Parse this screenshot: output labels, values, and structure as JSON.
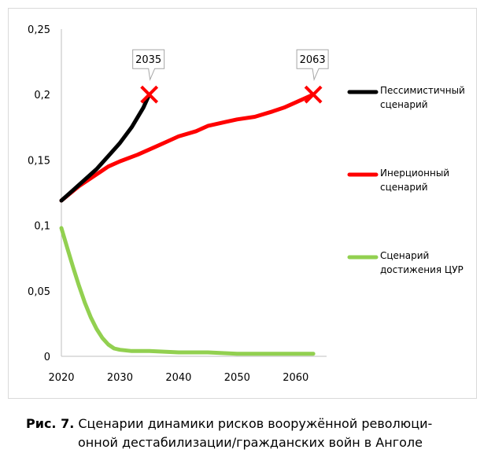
{
  "chart_data": {
    "type": "line",
    "x_ticks": [
      2020,
      2030,
      2040,
      2050,
      2060
    ],
    "y_ticks": [
      "0",
      "0,05",
      "0,1",
      "0,15",
      "0,2",
      "0,25"
    ],
    "xlim": [
      2020,
      2065
    ],
    "ylim": [
      0,
      0.25
    ],
    "grid": false,
    "legend_position": "right",
    "series": [
      {
        "name": "Пессимистичный сценарий",
        "color": "#000000",
        "x": [
          2020,
          2022,
          2024,
          2026,
          2028,
          2030,
          2032,
          2034,
          2035
        ],
        "y": [
          0.119,
          0.127,
          0.135,
          0.143,
          0.153,
          0.163,
          0.175,
          0.19,
          0.2
        ]
      },
      {
        "name": "Инерционный сценарий",
        "color": "#ff0000",
        "x": [
          2020,
          2023,
          2026,
          2028,
          2030,
          2033,
          2036,
          2038,
          2040,
          2043,
          2045,
          2048,
          2050,
          2053,
          2056,
          2058,
          2060,
          2063
        ],
        "y": [
          0.119,
          0.13,
          0.139,
          0.145,
          0.149,
          0.154,
          0.16,
          0.164,
          0.168,
          0.172,
          0.176,
          0.179,
          0.181,
          0.183,
          0.187,
          0.19,
          0.194,
          0.2
        ]
      },
      {
        "name": "Сценарий достижения ЦУР",
        "color": "#92d050",
        "x": [
          2020,
          2021,
          2022,
          2023,
          2024,
          2025,
          2026,
          2027,
          2028,
          2029,
          2030,
          2032,
          2035,
          2040,
          2045,
          2050,
          2055,
          2060,
          2063
        ],
        "y": [
          0.098,
          0.083,
          0.068,
          0.054,
          0.041,
          0.03,
          0.021,
          0.014,
          0.009,
          0.006,
          0.005,
          0.004,
          0.004,
          0.003,
          0.003,
          0.002,
          0.002,
          0.002,
          0.002
        ]
      }
    ],
    "markers": [
      {
        "x": 2035,
        "y": 0.2,
        "label": "2035",
        "color": "#ff0000"
      },
      {
        "x": 2063,
        "y": 0.2,
        "label": "2063",
        "color": "#ff0000"
      }
    ]
  },
  "caption": {
    "label": "Рис. 7.",
    "line1": " Сценарии динамики рисков вооружённой революци-",
    "line2": "онной дестабилизации/гражданских войн в Анголе"
  }
}
